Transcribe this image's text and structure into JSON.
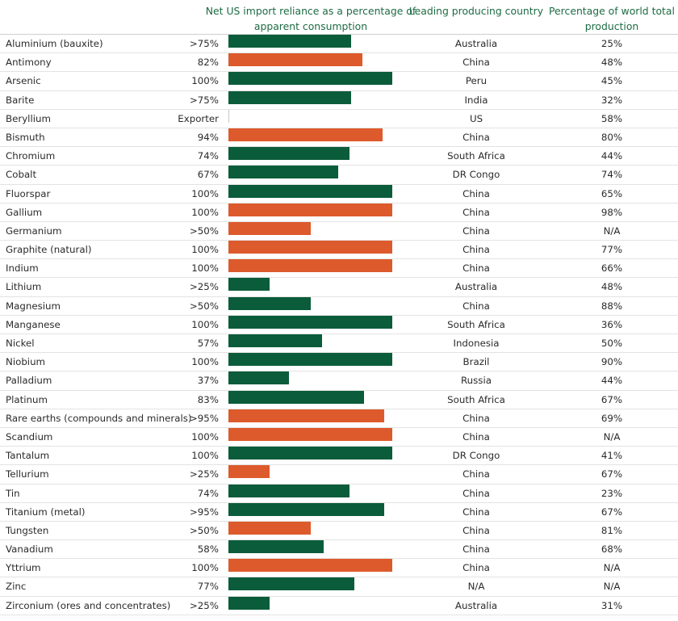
{
  "headers": {
    "import_reliance": "Net US import reliance as a percentage of apparent consumption",
    "leading_country": "Leading producing country",
    "world_share": "Percentage of world total production"
  },
  "colors": {
    "green": "#0b5c3a",
    "orange": "#dd5a2c"
  },
  "chart_data": {
    "type": "bar",
    "orientation": "horizontal",
    "title": "Net US import reliance as a percentage of apparent consumption",
    "xlim": [
      0,
      100
    ],
    "rows": [
      {
        "mineral": "Aluminium (bauxite)",
        "label": ">75%",
        "value": 75,
        "color": "green",
        "country": "Australia",
        "share": "25%"
      },
      {
        "mineral": "Antimony",
        "label": "82%",
        "value": 82,
        "color": "orange",
        "country": "China",
        "share": "48%"
      },
      {
        "mineral": "Arsenic",
        "label": "100%",
        "value": 100,
        "color": "green",
        "country": "Peru",
        "share": "45%"
      },
      {
        "mineral": "Barite",
        "label": ">75%",
        "value": 75,
        "color": "green",
        "country": "India",
        "share": "32%"
      },
      {
        "mineral": "Beryllium",
        "label": "Exporter",
        "value": 0,
        "color": "green",
        "country": "US",
        "share": "58%"
      },
      {
        "mineral": "Bismuth",
        "label": "94%",
        "value": 94,
        "color": "orange",
        "country": "China",
        "share": "80%"
      },
      {
        "mineral": "Chromium",
        "label": "74%",
        "value": 74,
        "color": "green",
        "country": "South Africa",
        "share": "44%"
      },
      {
        "mineral": "Cobalt",
        "label": "67%",
        "value": 67,
        "color": "green",
        "country": "DR Congo",
        "share": "74%"
      },
      {
        "mineral": "Fluorspar",
        "label": "100%",
        "value": 100,
        "color": "green",
        "country": "China",
        "share": "65%"
      },
      {
        "mineral": "Gallium",
        "label": "100%",
        "value": 100,
        "color": "orange",
        "country": "China",
        "share": "98%"
      },
      {
        "mineral": "Germanium",
        "label": ">50%",
        "value": 50,
        "color": "orange",
        "country": "China",
        "share": "N/A"
      },
      {
        "mineral": "Graphite (natural)",
        "label": "100%",
        "value": 100,
        "color": "orange",
        "country": "China",
        "share": "77%"
      },
      {
        "mineral": "Indium",
        "label": "100%",
        "value": 100,
        "color": "orange",
        "country": "China",
        "share": "66%"
      },
      {
        "mineral": "Lithium",
        "label": ">25%",
        "value": 25,
        "color": "green",
        "country": "Australia",
        "share": "48%"
      },
      {
        "mineral": "Magnesium",
        "label": ">50%",
        "value": 50,
        "color": "green",
        "country": "China",
        "share": "88%"
      },
      {
        "mineral": "Manganese",
        "label": "100%",
        "value": 100,
        "color": "green",
        "country": "South Africa",
        "share": "36%"
      },
      {
        "mineral": "Nickel",
        "label": "57%",
        "value": 57,
        "color": "green",
        "country": "Indonesia",
        "share": "50%"
      },
      {
        "mineral": "Niobium",
        "label": "100%",
        "value": 100,
        "color": "green",
        "country": "Brazil",
        "share": "90%"
      },
      {
        "mineral": "Palladium",
        "label": "37%",
        "value": 37,
        "color": "green",
        "country": "Russia",
        "share": "44%"
      },
      {
        "mineral": "Platinum",
        "label": "83%",
        "value": 83,
        "color": "green",
        "country": "South Africa",
        "share": "67%"
      },
      {
        "mineral": "Rare earths (compounds and minerals)",
        "label": ">95%",
        "value": 95,
        "color": "orange",
        "country": "China",
        "share": "69%"
      },
      {
        "mineral": "Scandium",
        "label": "100%",
        "value": 100,
        "color": "orange",
        "country": "China",
        "share": "N/A"
      },
      {
        "mineral": "Tantalum",
        "label": "100%",
        "value": 100,
        "color": "green",
        "country": "DR Congo",
        "share": "41%"
      },
      {
        "mineral": "Tellurium",
        "label": ">25%",
        "value": 25,
        "color": "orange",
        "country": "China",
        "share": "67%"
      },
      {
        "mineral": "Tin",
        "label": "74%",
        "value": 74,
        "color": "green",
        "country": "China",
        "share": "23%"
      },
      {
        "mineral": "Titanium (metal)",
        "label": ">95%",
        "value": 95,
        "color": "green",
        "country": "China",
        "share": "67%"
      },
      {
        "mineral": "Tungsten",
        "label": ">50%",
        "value": 50,
        "color": "orange",
        "country": "China",
        "share": "81%"
      },
      {
        "mineral": "Vanadium",
        "label": "58%",
        "value": 58,
        "color": "green",
        "country": "China",
        "share": "68%"
      },
      {
        "mineral": "Yttrium",
        "label": "100%",
        "value": 100,
        "color": "orange",
        "country": "China",
        "share": "N/A"
      },
      {
        "mineral": "Zinc",
        "label": "77%",
        "value": 77,
        "color": "green",
        "country": "N/A",
        "share": "N/A"
      },
      {
        "mineral": "Zirconium (ores and concentrates)",
        "label": ">25%",
        "value": 25,
        "color": "green",
        "country": "Australia",
        "share": "31%"
      }
    ]
  }
}
